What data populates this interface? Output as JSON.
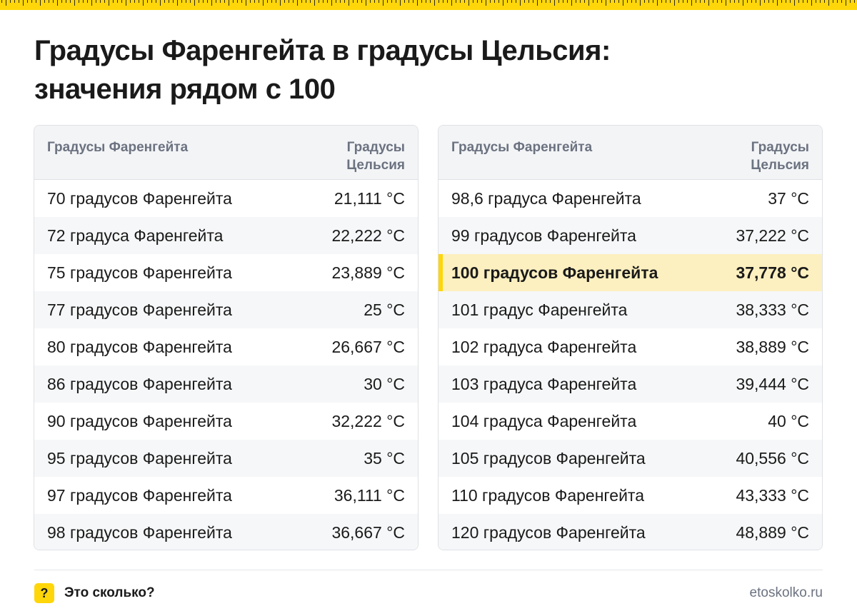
{
  "title": {
    "line1": "Градусы Фаренгейта в градусы Цельсия:",
    "line2": "значения рядом с 100"
  },
  "tables": [
    {
      "header": {
        "fahrenheit": "Градусы Фаренгейта",
        "celsius_line1": "Градусы",
        "celsius_line2": "Цельсия"
      },
      "rows": [
        {
          "f": "70 градусов Фаренгейта",
          "c": "21,111 °C"
        },
        {
          "f": "72 градуса Фаренгейта",
          "c": "22,222 °C"
        },
        {
          "f": "75 градусов Фаренгейта",
          "c": "23,889 °C"
        },
        {
          "f": "77 градусов Фаренгейта",
          "c": "25 °C"
        },
        {
          "f": "80 градусов Фаренгейта",
          "c": "26,667 °C"
        },
        {
          "f": "86 градусов Фаренгейта",
          "c": "30 °C"
        },
        {
          "f": "90 градусов Фаренгейта",
          "c": "32,222 °C"
        },
        {
          "f": "95 градусов Фаренгейта",
          "c": "35 °C"
        },
        {
          "f": "97 градусов Фаренгейта",
          "c": "36,111 °C"
        },
        {
          "f": "98 градусов Фаренгейта",
          "c": "36,667 °C"
        }
      ]
    },
    {
      "header": {
        "fahrenheit": "Градусы Фаренгейта",
        "celsius_line1": "Градусы",
        "celsius_line2": "Цельсия"
      },
      "rows": [
        {
          "f": "98,6 градуса Фаренгейта",
          "c": "37 °C"
        },
        {
          "f": "99 градусов Фаренгейта",
          "c": "37,222 °C"
        },
        {
          "f": "100 градусов Фаренгейта",
          "c": "37,778 °C",
          "highlighted": true
        },
        {
          "f": "101 градус Фаренгейта",
          "c": "38,333 °C"
        },
        {
          "f": "102 градуса Фаренгейта",
          "c": "38,889 °C"
        },
        {
          "f": "103 градуса Фаренгейта",
          "c": "39,444 °C"
        },
        {
          "f": "104 градуса Фаренгейта",
          "c": "40 °C"
        },
        {
          "f": "105 градусов Фаренгейта",
          "c": "40,556 °C"
        },
        {
          "f": "110 градусов Фаренгейта",
          "c": "43,333 °C"
        },
        {
          "f": "120 градусов Фаренгейта",
          "c": "48,889 °C"
        }
      ]
    }
  ],
  "footer": {
    "logo_glyph": "?",
    "brand": "Это сколько?",
    "url": "etoskolko.ru"
  },
  "colors": {
    "accent": "#ffd60a",
    "highlight_row": "#fdf0c0",
    "header_bg": "#f3f4f6",
    "header_text": "#6b7280"
  }
}
